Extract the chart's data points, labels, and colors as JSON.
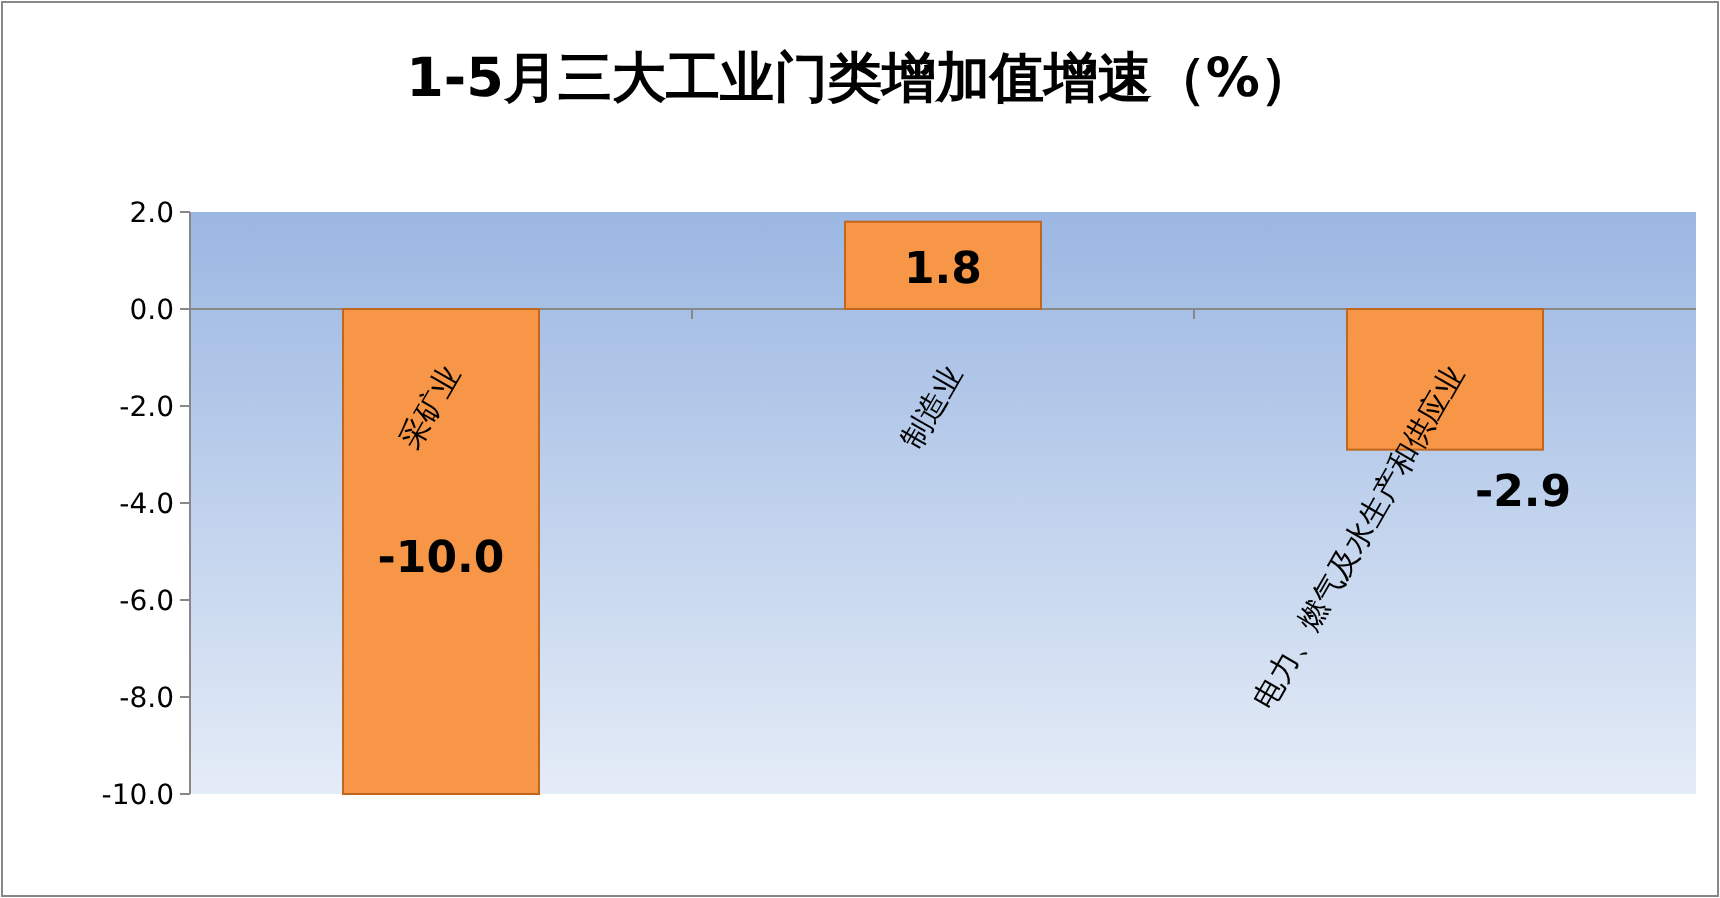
{
  "chart_data": {
    "type": "bar",
    "title": "1-5月三大工业门类增加值增速（%）",
    "categories": [
      "采矿业",
      "制造业",
      "电力、燃气及水生产和供应业"
    ],
    "values": [
      -10.0,
      1.8,
      -2.9
    ],
    "value_labels": [
      "-10.0",
      "1.8",
      "-2.9"
    ],
    "color": "#f79646",
    "ylim": [
      -10,
      2
    ],
    "yticks": [
      {
        "value": 2,
        "label": "2.0"
      },
      {
        "value": 0,
        "label": "0.0"
      },
      {
        "value": -2,
        "label": "-2.0"
      },
      {
        "value": -4,
        "label": "-4.0"
      },
      {
        "value": -6,
        "label": "-6.0"
      },
      {
        "value": -8,
        "label": "-8.0"
      },
      {
        "value": -10,
        "label": "-10.0"
      }
    ]
  }
}
